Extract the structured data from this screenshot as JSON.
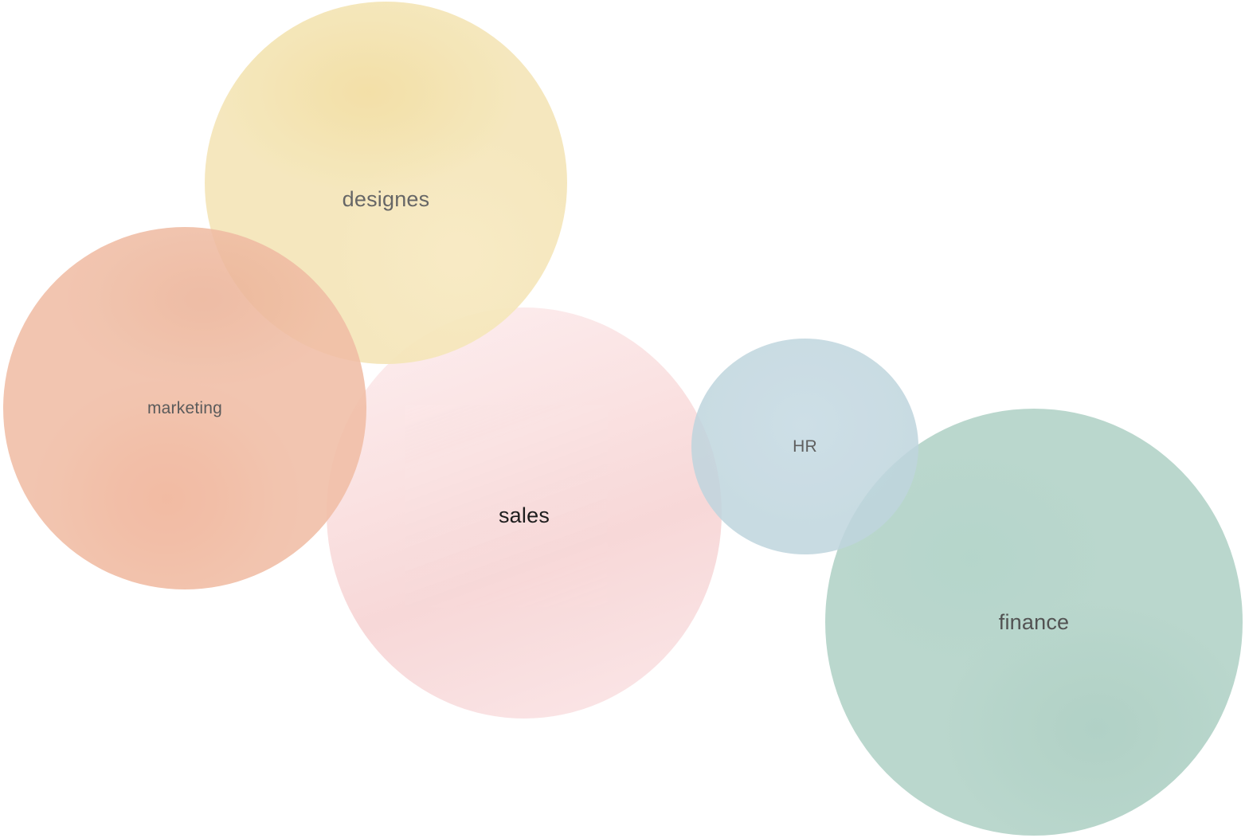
{
  "bubbles": [
    {
      "id": "designes",
      "label": "designes",
      "color": "#f5e6b9"
    },
    {
      "id": "marketing",
      "label": "marketing",
      "color": "#f1bea6"
    },
    {
      "id": "sales",
      "label": "sales",
      "color": "#f6d2d2"
    },
    {
      "id": "hr",
      "label": "HR",
      "color": "#bfd5de"
    },
    {
      "id": "finance",
      "label": "finance",
      "color": "#b3d3c8"
    }
  ]
}
